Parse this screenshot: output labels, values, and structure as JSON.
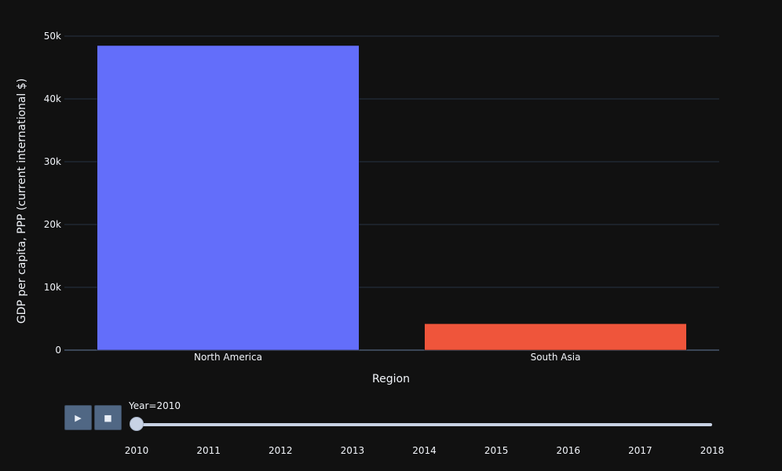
{
  "chart_data": {
    "type": "bar",
    "categories": [
      "North America",
      "South Asia"
    ],
    "values": [
      48500,
      4200
    ],
    "colors": [
      "#636efa",
      "#ef553b"
    ],
    "title": "",
    "xlabel": "Region",
    "ylabel": "GDP per capita, PPP (current international $)",
    "ylim": [
      0,
      52000
    ],
    "yticks": [
      0,
      10000,
      20000,
      30000,
      40000,
      50000
    ],
    "ytick_labels": [
      "0",
      "10k",
      "20k",
      "30k",
      "40k",
      "50k"
    ],
    "grid": true,
    "background": "#111111",
    "gridcolor": "#283442"
  },
  "animation": {
    "play_icon": "▶",
    "stop_icon": "■",
    "current_label": "Year=2010",
    "steps": [
      "2010",
      "2011",
      "2012",
      "2013",
      "2014",
      "2015",
      "2016",
      "2017",
      "2018"
    ],
    "active_index": 0
  }
}
